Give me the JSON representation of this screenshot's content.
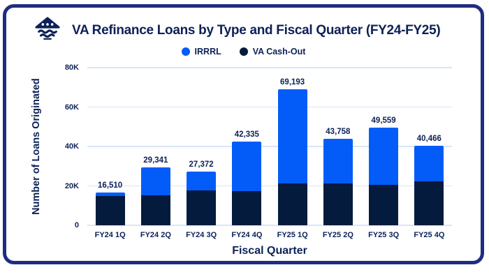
{
  "header": {
    "title": "VA Refinance Loans by Type and Fiscal Quarter (FY24-FY25)",
    "logo_icon": "house-over-waves-icon"
  },
  "colors": {
    "irrrl_blue": "#045cf8",
    "cashout_navy": "#041b3e",
    "text_navy": "#0c2157",
    "gridline": "#d8e6f8",
    "card_border": "#1e2d82"
  },
  "legend": [
    {
      "label": "IRRRL",
      "color": "#045cf8"
    },
    {
      "label": "VA Cash-Out",
      "color": "#041b3e"
    }
  ],
  "chart_data": {
    "type": "bar",
    "subtype": "stacked",
    "title": "VA Refinance Loans by Type and Fiscal Quarter (FY24-FY25)",
    "xlabel": "Fiscal Quarter",
    "ylabel": "Number of Loans Originated",
    "ylim": [
      0,
      80000
    ],
    "grid": true,
    "legend_position": "top",
    "categories": [
      "FY24 1Q",
      "FY24 2Q",
      "FY24 3Q",
      "FY24 4Q",
      "FY25 1Q",
      "FY25 2Q",
      "FY25 3Q",
      "FY25 4Q"
    ],
    "series": [
      {
        "name": "VA Cash-Out",
        "color": "#041b3e",
        "stack_order": "bottom",
        "values": [
          15000,
          15100,
          17600,
          17300,
          21400,
          21100,
          20500,
          22300
        ],
        "note": "estimated from bar segment heights; only stack totals are labeled in chart"
      },
      {
        "name": "IRRRL",
        "color": "#045cf8",
        "stack_order": "top",
        "values": [
          1510,
          14241,
          9772,
          25035,
          47793,
          22658,
          29059,
          18166
        ],
        "note": "estimated from bar segment heights; only stack totals are labeled in chart"
      }
    ],
    "totals": [
      16510,
      29341,
      27372,
      42335,
      69193,
      43758,
      49559,
      40466
    ],
    "totals_formatted": [
      "16,510",
      "29,341",
      "27,372",
      "42,335",
      "69,193",
      "43,758",
      "49,559",
      "40,466"
    ],
    "yticks": [
      {
        "value": 0,
        "label": "0"
      },
      {
        "value": 20000,
        "label": "20K"
      },
      {
        "value": 40000,
        "label": "40K"
      },
      {
        "value": 60000,
        "label": "60K"
      },
      {
        "value": 80000,
        "label": "80K"
      }
    ]
  }
}
